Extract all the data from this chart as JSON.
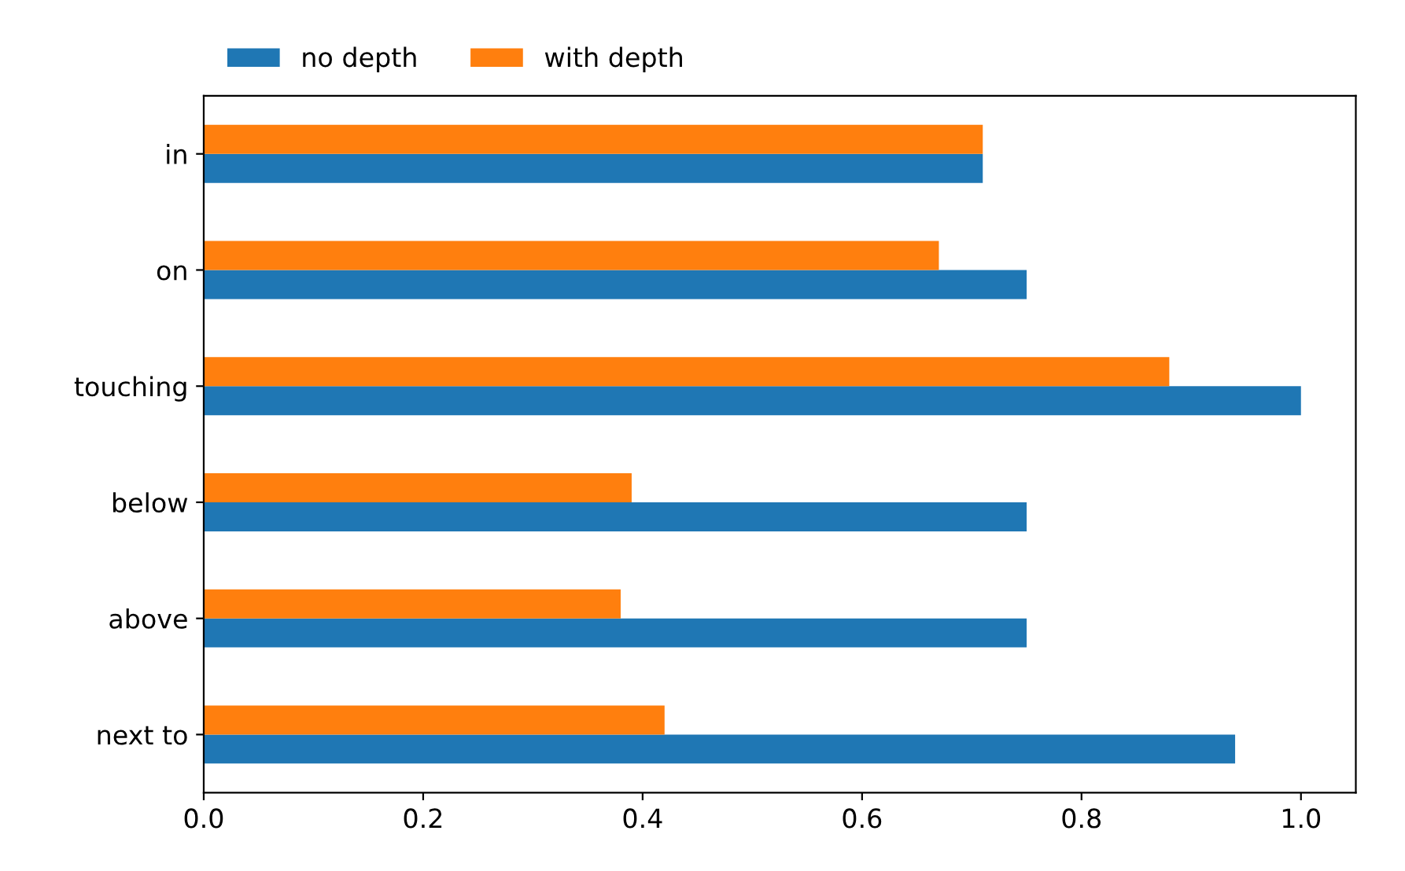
{
  "chart_data": {
    "type": "bar",
    "orientation": "horizontal",
    "categories": [
      "in",
      "on",
      "touching",
      "below",
      "above",
      "next to"
    ],
    "series": [
      {
        "name": "no depth",
        "color": "#1f77b4",
        "values": [
          0.71,
          0.75,
          1.0,
          0.75,
          0.75,
          0.94
        ]
      },
      {
        "name": "with depth",
        "color": "#ff7f0e",
        "values": [
          0.71,
          0.67,
          0.88,
          0.39,
          0.38,
          0.42
        ]
      }
    ],
    "xlim": [
      0,
      1.05
    ],
    "xticks": [
      {
        "value": 0,
        "label": "0.0"
      },
      0.2,
      0.4,
      0.6,
      0.8,
      {
        "value": 1,
        "label": "1.0"
      }
    ],
    "legend": "top left",
    "grid": false
  }
}
